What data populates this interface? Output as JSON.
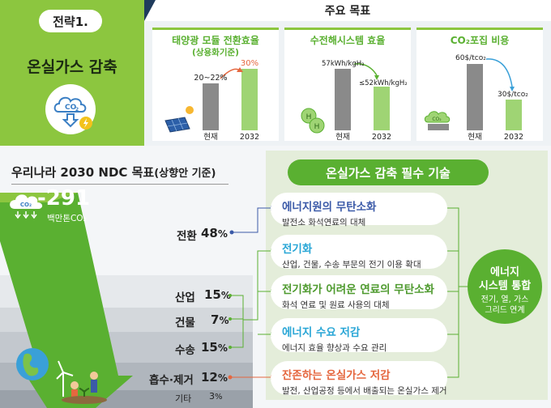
{
  "strategy": {
    "label": "전략1.",
    "title": "온실가스 감축",
    "icon_text": "CO",
    "icon_sub": "2"
  },
  "targets": {
    "title": "주요 목표",
    "panels": [
      {
        "title": "태양광 모듈 전환효율",
        "subtitle": "(상용화기준)",
        "current_label": "현재",
        "target_label": "2032",
        "current_value": "20~22%",
        "target_value": "30%"
      },
      {
        "title": "수전해시스템 효율",
        "subtitle": "",
        "current_label": "현재",
        "target_label": "2032",
        "current_value": "57kWh/kgH₂",
        "target_value": "≤52kWh/kgH₂",
        "icon_letter": "H"
      },
      {
        "title": "CO₂포집 비용",
        "subtitle": "",
        "current_label": "현재",
        "target_label": "2032",
        "current_value": "60$/tco₂",
        "target_value": "30$/tco₂",
        "icon_text": "CO₂"
      }
    ]
  },
  "ndc": {
    "title": "우리나라 2030 NDC 목표",
    "title_suffix": "(상향안 기준)",
    "total_value": "-291",
    "total_unit": "백만톤CO₂",
    "cloud_text": "CO₂",
    "sectors": [
      {
        "name": "전환",
        "value": "48",
        "unit": "%"
      },
      {
        "name": "산업",
        "value": "15",
        "unit": "%"
      },
      {
        "name": "건물",
        "value": "7",
        "unit": "%"
      },
      {
        "name": "수송",
        "value": "15",
        "unit": "%"
      },
      {
        "name": "흡수·제거",
        "value": "12",
        "unit": "%"
      },
      {
        "name": "기타",
        "value": "3",
        "unit": "%"
      }
    ]
  },
  "tech": {
    "header": "온실가스 감축 필수 기술",
    "items": [
      {
        "title": "에너지원의 무탄소화",
        "desc": "발전소 화석연료의 대체",
        "color": "#3b5aa8"
      },
      {
        "title": "전기화",
        "desc": "산업, 건물, 수송 부문의 전기 이용 확대",
        "color": "#29a6d6"
      },
      {
        "title": "전기화가 어려운 연료의 무탄소화",
        "desc": "화석 연료 및 원료 사용의 대체",
        "color": "#4e9a2e"
      },
      {
        "title": "에너지 수요 저감",
        "desc": "에너지 효율 향상과 수요 관리",
        "color": "#29a6d6"
      },
      {
        "title": "잔존하는 온실가스 저감",
        "desc": "발전, 산업공정 등에서 배출되는 온실가스 제거",
        "color": "#e5673f"
      }
    ],
    "system": {
      "line1": "에너지",
      "line2": "시스템 통합",
      "line3": "전기, 열, 가스",
      "line4": "그리드 연계"
    }
  },
  "colors": {
    "green": "#8cc63f",
    "dark_green": "#5ab031",
    "bar_current": "#8a8a8a",
    "bar_target": "#9fd474",
    "navy": "#1f3b5c",
    "orange": "#e5673f",
    "blue": "#3b5aa8"
  }
}
